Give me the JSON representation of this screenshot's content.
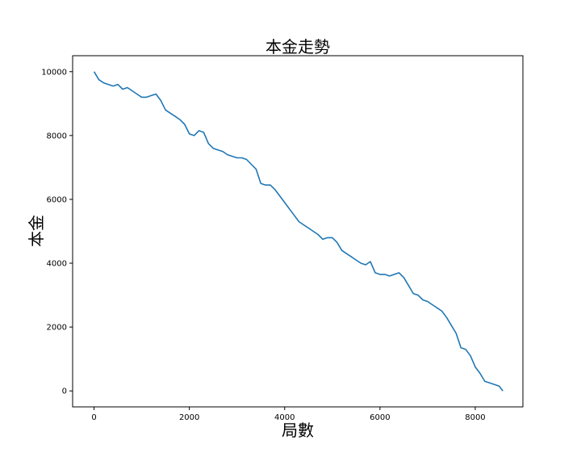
{
  "chart_data": {
    "type": "line",
    "title": "本金走勢",
    "xlabel": "局數",
    "ylabel": "本金",
    "xlim": [
      -450,
      9000
    ],
    "ylim": [
      -500,
      10500
    ],
    "xticks": [
      0,
      2000,
      4000,
      6000,
      8000
    ],
    "xtick_labels": [
      "0",
      "2000",
      "4000",
      "6000",
      "8000"
    ],
    "yticks": [
      0,
      2000,
      4000,
      6000,
      8000,
      10000
    ],
    "ytick_labels": [
      "0",
      "2000",
      "4000",
      "6000",
      "8000",
      "10000"
    ],
    "grid": false,
    "color": "#1f77b4",
    "series": [
      {
        "x": [
          0,
          100,
          200,
          300,
          400,
          500,
          600,
          700,
          800,
          900,
          1000,
          1100,
          1200,
          1300,
          1400,
          1500,
          1600,
          1700,
          1800,
          1900,
          2000,
          2100,
          2200,
          2300,
          2400,
          2500,
          2600,
          2700,
          2800,
          2900,
          3000,
          3100,
          3200,
          3300,
          3400,
          3500,
          3600,
          3700,
          3800,
          3900,
          4000,
          4100,
          4200,
          4300,
          4400,
          4500,
          4600,
          4700,
          4800,
          4900,
          5000,
          5100,
          5200,
          5300,
          5400,
          5500,
          5600,
          5700,
          5800,
          5900,
          6000,
          6100,
          6200,
          6300,
          6400,
          6500,
          6600,
          6700,
          6800,
          6900,
          7000,
          7100,
          7200,
          7300,
          7400,
          7500,
          7600,
          7700,
          7800,
          7900,
          8000,
          8100,
          8200,
          8300,
          8400,
          8500,
          8580
        ],
        "y": [
          10000,
          9750,
          9650,
          9600,
          9550,
          9600,
          9450,
          9500,
          9400,
          9300,
          9200,
          9200,
          9250,
          9300,
          9100,
          8800,
          8700,
          8600,
          8500,
          8350,
          8050,
          8000,
          8150,
          8100,
          7750,
          7600,
          7550,
          7500,
          7400,
          7350,
          7300,
          7300,
          7250,
          7100,
          6950,
          6500,
          6450,
          6450,
          6300,
          6100,
          5900,
          5700,
          5500,
          5300,
          5200,
          5100,
          5000,
          4900,
          4750,
          4800,
          4800,
          4650,
          4400,
          4300,
          4200,
          4100,
          4000,
          3950,
          4050,
          3700,
          3650,
          3650,
          3600,
          3650,
          3700,
          3550,
          3300,
          3050,
          3000,
          2850,
          2800,
          2700,
          2600,
          2500,
          2300,
          2050,
          1800,
          1350,
          1300,
          1100,
          750,
          550,
          300,
          250,
          200,
          150,
          0
        ]
      }
    ]
  }
}
